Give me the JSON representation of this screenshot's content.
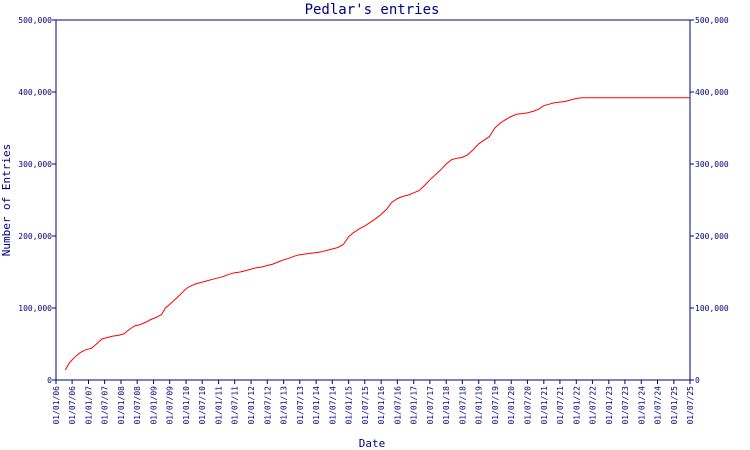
{
  "chart_data": {
    "type": "line",
    "title": "Pedlar's entries",
    "xlabel": "Date",
    "ylabel": "Number of Entries",
    "ylim": [
      0,
      500000
    ],
    "yticks": [
      0,
      100000,
      200000,
      300000,
      400000,
      500000
    ],
    "ytick_labels": [
      "0",
      "100,000",
      "200,000",
      "300,000",
      "400,000",
      "500,000"
    ],
    "right_axis": true,
    "grid": false,
    "xlim": [
      "2006-01-01",
      "2025-07-01"
    ],
    "xticks": [
      {
        "date": "2006-01-01",
        "label": "01/01/06"
      },
      {
        "date": "2006-07-01",
        "label": "01/07/06"
      },
      {
        "date": "2007-01-01",
        "label": "01/01/07"
      },
      {
        "date": "2007-07-01",
        "label": "01/07/07"
      },
      {
        "date": "2008-01-01",
        "label": "01/01/08"
      },
      {
        "date": "2008-07-01",
        "label": "01/07/08"
      },
      {
        "date": "2009-01-01",
        "label": "01/01/09"
      },
      {
        "date": "2009-07-01",
        "label": "01/07/09"
      },
      {
        "date": "2010-01-01",
        "label": "01/01/10"
      },
      {
        "date": "2010-07-01",
        "label": "01/07/10"
      },
      {
        "date": "2011-01-01",
        "label": "01/01/11"
      },
      {
        "date": "2011-07-01",
        "label": "01/07/11"
      },
      {
        "date": "2012-01-01",
        "label": "01/01/12"
      },
      {
        "date": "2012-07-01",
        "label": "01/07/12"
      },
      {
        "date": "2013-01-01",
        "label": "01/01/13"
      },
      {
        "date": "2013-07-01",
        "label": "01/07/13"
      },
      {
        "date": "2014-01-01",
        "label": "01/01/14"
      },
      {
        "date": "2014-07-01",
        "label": "01/07/14"
      },
      {
        "date": "2015-01-01",
        "label": "01/01/15"
      },
      {
        "date": "2015-07-01",
        "label": "01/07/15"
      },
      {
        "date": "2016-01-01",
        "label": "01/01/16"
      },
      {
        "date": "2016-07-01",
        "label": "01/07/16"
      },
      {
        "date": "2017-01-01",
        "label": "01/01/17"
      },
      {
        "date": "2017-07-01",
        "label": "01/07/17"
      },
      {
        "date": "2018-01-01",
        "label": "01/01/18"
      },
      {
        "date": "2018-07-01",
        "label": "01/07/18"
      },
      {
        "date": "2019-01-01",
        "label": "01/01/19"
      },
      {
        "date": "2019-07-01",
        "label": "01/07/19"
      },
      {
        "date": "2020-01-01",
        "label": "01/01/20"
      },
      {
        "date": "2020-07-01",
        "label": "01/07/20"
      },
      {
        "date": "2021-01-01",
        "label": "01/01/21"
      },
      {
        "date": "2021-07-01",
        "label": "01/07/21"
      },
      {
        "date": "2022-01-01",
        "label": "01/01/22"
      },
      {
        "date": "2022-07-01",
        "label": "01/07/22"
      },
      {
        "date": "2023-01-01",
        "label": "01/01/23"
      },
      {
        "date": "2023-07-01",
        "label": "01/07/23"
      },
      {
        "date": "2024-01-01",
        "label": "01/01/24"
      },
      {
        "date": "2024-07-01",
        "label": "01/07/24"
      },
      {
        "date": "2025-01-01",
        "label": "01/01/25"
      },
      {
        "date": "2025-07-01",
        "label": "01/07/25"
      }
    ],
    "series": [
      {
        "color": "#ff0000",
        "points": [
          [
            "2006-04-15",
            14000
          ],
          [
            "2006-06-01",
            24000
          ],
          [
            "2006-08-01",
            32000
          ],
          [
            "2006-10-01",
            38000
          ],
          [
            "2006-12-01",
            42000
          ],
          [
            "2007-02-01",
            44000
          ],
          [
            "2007-04-01",
            50000
          ],
          [
            "2007-06-01",
            57000
          ],
          [
            "2007-08-01",
            59000
          ],
          [
            "2007-10-01",
            61000
          ],
          [
            "2007-12-01",
            62000
          ],
          [
            "2008-02-01",
            64000
          ],
          [
            "2008-04-01",
            70000
          ],
          [
            "2008-06-01",
            75000
          ],
          [
            "2008-08-01",
            77000
          ],
          [
            "2008-10-01",
            80000
          ],
          [
            "2008-12-01",
            84000
          ],
          [
            "2009-02-01",
            87000
          ],
          [
            "2009-04-01",
            91000
          ],
          [
            "2009-05-15",
            100000
          ],
          [
            "2009-07-01",
            105000
          ],
          [
            "2009-09-01",
            112000
          ],
          [
            "2009-11-01",
            119000
          ],
          [
            "2010-01-01",
            127000
          ],
          [
            "2010-03-01",
            131000
          ],
          [
            "2010-05-01",
            134000
          ],
          [
            "2010-07-01",
            136000
          ],
          [
            "2010-09-01",
            138000
          ],
          [
            "2010-11-01",
            140000
          ],
          [
            "2011-01-01",
            142000
          ],
          [
            "2011-03-01",
            144000
          ],
          [
            "2011-05-01",
            147000
          ],
          [
            "2011-07-01",
            149000
          ],
          [
            "2011-09-01",
            150000
          ],
          [
            "2011-11-01",
            152000
          ],
          [
            "2012-01-01",
            154000
          ],
          [
            "2012-03-01",
            156000
          ],
          [
            "2012-05-01",
            157000
          ],
          [
            "2012-07-01",
            159000
          ],
          [
            "2012-09-01",
            161000
          ],
          [
            "2012-11-01",
            164000
          ],
          [
            "2013-01-01",
            167000
          ],
          [
            "2013-03-01",
            169000
          ],
          [
            "2013-05-01",
            172000
          ],
          [
            "2013-07-01",
            174000
          ],
          [
            "2013-09-01",
            175000
          ],
          [
            "2013-11-01",
            176000
          ],
          [
            "2014-01-01",
            177000
          ],
          [
            "2014-03-01",
            178000
          ],
          [
            "2014-05-01",
            180000
          ],
          [
            "2014-07-01",
            182000
          ],
          [
            "2014-09-01",
            184000
          ],
          [
            "2014-11-01",
            188000
          ],
          [
            "2015-01-01",
            199000
          ],
          [
            "2015-03-01",
            205000
          ],
          [
            "2015-05-01",
            210000
          ],
          [
            "2015-07-01",
            214000
          ],
          [
            "2015-09-01",
            219000
          ],
          [
            "2015-11-01",
            224000
          ],
          [
            "2016-01-01",
            230000
          ],
          [
            "2016-03-01",
            237000
          ],
          [
            "2016-05-01",
            247000
          ],
          [
            "2016-07-01",
            252000
          ],
          [
            "2016-09-01",
            255000
          ],
          [
            "2016-11-01",
            257000
          ],
          [
            "2017-01-01",
            260000
          ],
          [
            "2017-03-01",
            263000
          ],
          [
            "2017-05-01",
            270000
          ],
          [
            "2017-07-01",
            278000
          ],
          [
            "2017-09-01",
            285000
          ],
          [
            "2017-11-01",
            292000
          ],
          [
            "2018-01-01",
            300000
          ],
          [
            "2018-03-01",
            306000
          ],
          [
            "2018-05-01",
            308000
          ],
          [
            "2018-07-01",
            309000
          ],
          [
            "2018-09-01",
            313000
          ],
          [
            "2018-11-01",
            320000
          ],
          [
            "2019-01-01",
            328000
          ],
          [
            "2019-03-01",
            333000
          ],
          [
            "2019-05-01",
            338000
          ],
          [
            "2019-07-01",
            350000
          ],
          [
            "2019-09-01",
            357000
          ],
          [
            "2019-11-01",
            362000
          ],
          [
            "2020-01-01",
            366000
          ],
          [
            "2020-03-01",
            369000
          ],
          [
            "2020-05-01",
            370000
          ],
          [
            "2020-07-01",
            371000
          ],
          [
            "2020-09-01",
            373000
          ],
          [
            "2020-11-01",
            376000
          ],
          [
            "2021-01-01",
            381000
          ],
          [
            "2021-03-01",
            383000
          ],
          [
            "2021-05-01",
            385000
          ],
          [
            "2021-07-01",
            386000
          ],
          [
            "2021-09-01",
            387000
          ],
          [
            "2021-11-01",
            389000
          ],
          [
            "2022-01-01",
            391000
          ],
          [
            "2022-03-01",
            392000
          ],
          [
            "2022-07-01",
            392000
          ],
          [
            "2023-01-01",
            392000
          ],
          [
            "2023-07-01",
            392000
          ],
          [
            "2024-01-01",
            392000
          ],
          [
            "2024-07-01",
            392000
          ],
          [
            "2025-01-01",
            392000
          ],
          [
            "2025-07-01",
            392000
          ]
        ]
      }
    ]
  }
}
